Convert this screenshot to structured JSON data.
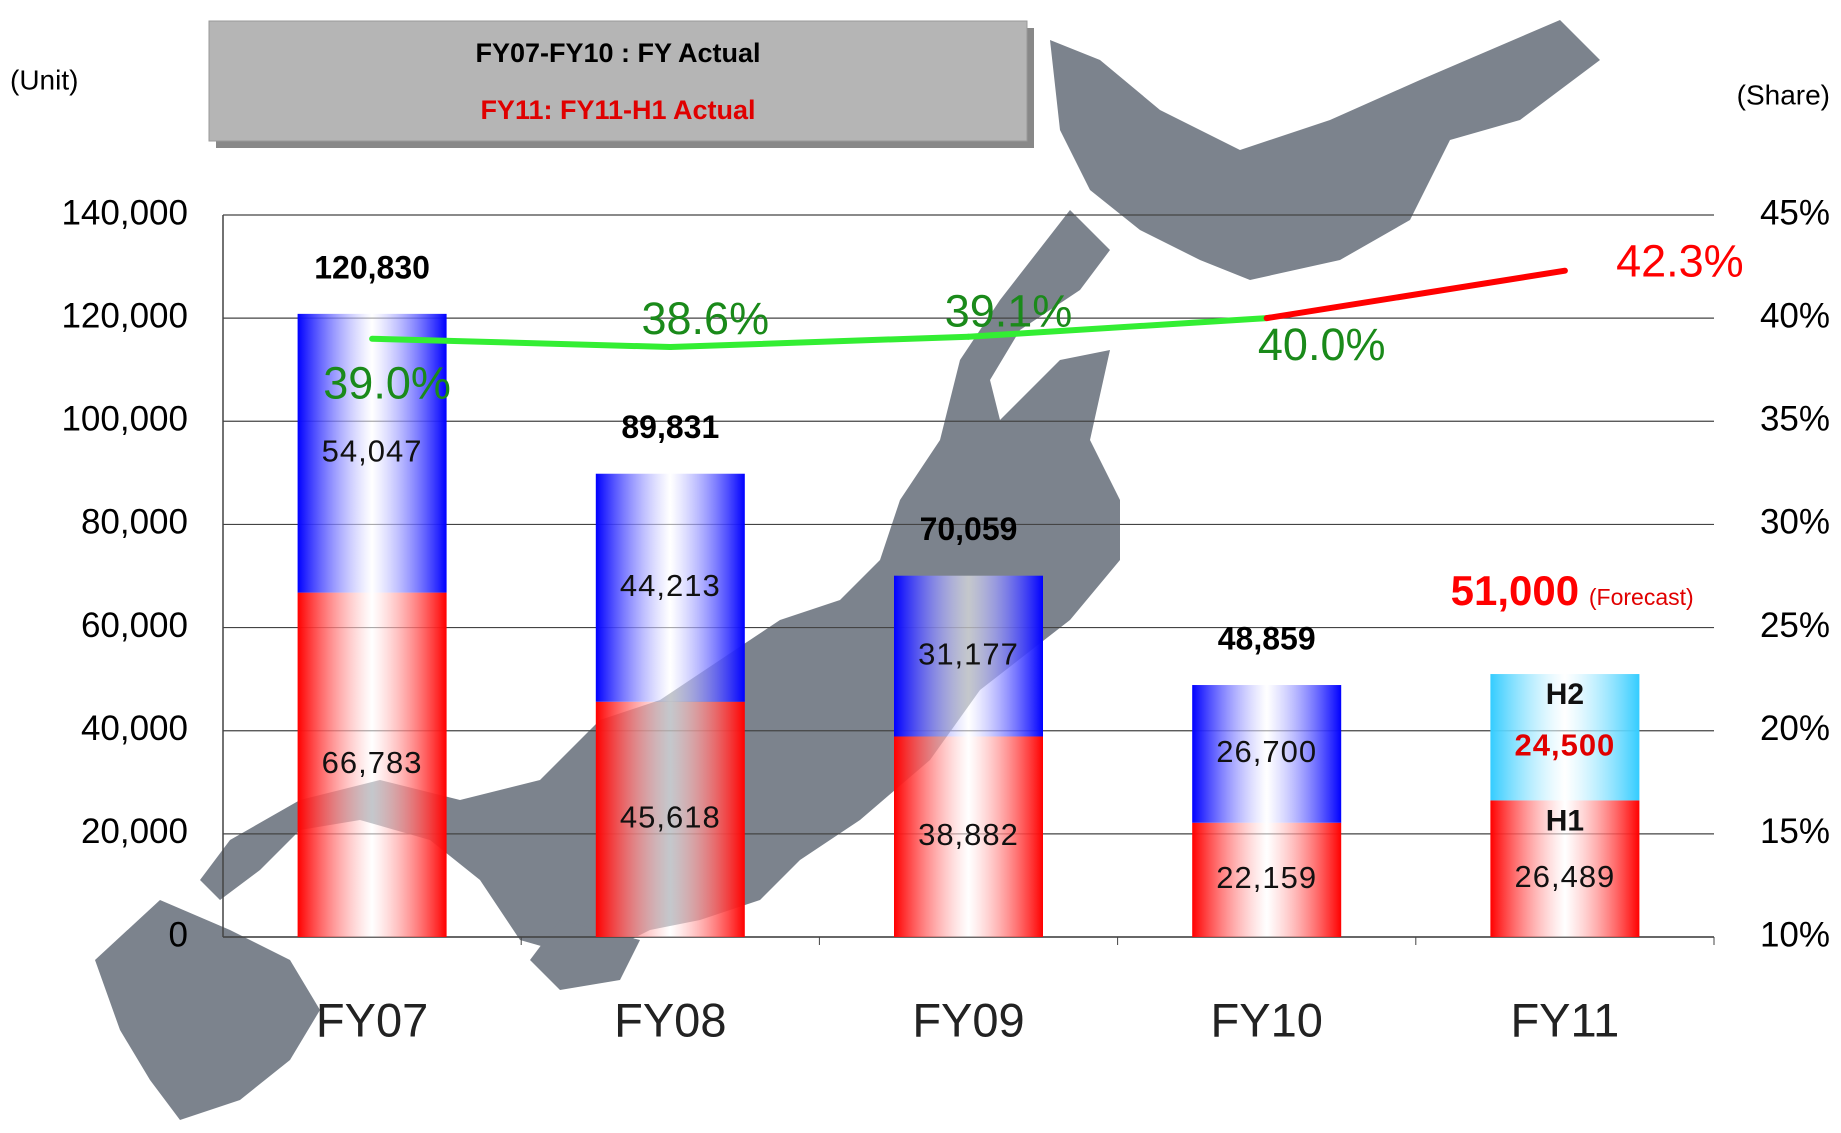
{
  "chart_data": {
    "type": "stacked_bar_line",
    "legend_lines": [
      "FY07-FY10 : FY Actual",
      "FY11: FY11-H1 Actual"
    ],
    "legend_colors": [
      "#000000",
      "#e00000"
    ],
    "y_label": "(Unit)",
    "y2_label": "(Share)",
    "categories": [
      "FY07",
      "FY08",
      "FY09",
      "FY10",
      "FY11"
    ],
    "ylim": [
      0,
      140000
    ],
    "yticks": [
      {
        "value": 0,
        "label": "0"
      },
      {
        "value": 20000,
        "label": "20,000"
      },
      {
        "value": 40000,
        "label": "40,000"
      },
      {
        "value": 60000,
        "label": "60,000"
      },
      {
        "value": 80000,
        "label": "80,000"
      },
      {
        "value": 100000,
        "label": "100,000"
      },
      {
        "value": 120000,
        "label": "120,000"
      },
      {
        "value": 140000,
        "label": "140,000"
      }
    ],
    "y2lim": [
      10,
      45
    ],
    "y2ticks": [
      {
        "value": 10,
        "label": "10%"
      },
      {
        "value": 15,
        "label": "15%"
      },
      {
        "value": 20,
        "label": "20%"
      },
      {
        "value": 25,
        "label": "25%"
      },
      {
        "value": 30,
        "label": "30%"
      },
      {
        "value": 35,
        "label": "35%"
      },
      {
        "value": 40,
        "label": "40%"
      },
      {
        "value": 45,
        "label": "45%"
      }
    ],
    "grid": true,
    "series": [
      {
        "colors": [
          "#ff0000",
          "#ff0000",
          "#ff0000",
          "#ff0000",
          "#ff0000"
        ],
        "values": [
          66783,
          45618,
          38882,
          22159,
          26489
        ],
        "value_labels": [
          "66,783",
          "45,618",
          "38,882",
          "22,159",
          "26,489"
        ]
      },
      {
        "colors": [
          "#0000ff",
          "#0000ff",
          "#0000ff",
          "#0000ff",
          "#33ccff"
        ],
        "values": [
          54047,
          44213,
          31177,
          26700,
          24500
        ],
        "value_labels": [
          "54,047",
          "44,213",
          "31,177",
          "26,700",
          "24,500"
        ]
      },
      {
        "axis": "y2",
        "colors": [
          "#33ee33",
          "#33ee33",
          "#33ee33",
          "#33ee33",
          "#ff0000"
        ],
        "label_colors": [
          "#1a8a1a",
          "#1a8a1a",
          "#1a8a1a",
          "#1a8a1a",
          "#ff0000"
        ],
        "values": [
          39.0,
          38.6,
          39.1,
          40.0,
          42.3
        ],
        "value_labels": [
          "39.0%",
          "38.6%",
          "39.1%",
          "40.0%",
          "42.3%"
        ]
      }
    ],
    "totals": [
      120830,
      89831,
      70059,
      48859,
      51000
    ],
    "total_labels": [
      "120,830",
      "89,831",
      "70,059",
      "48,859",
      "51,000"
    ],
    "total_colors": [
      "#000000",
      "#000000",
      "#000000",
      "#000000",
      "#ff0000"
    ],
    "annotations": {
      "forecast": "(Forecast)",
      "h2": "H2",
      "h1": "H1"
    }
  }
}
